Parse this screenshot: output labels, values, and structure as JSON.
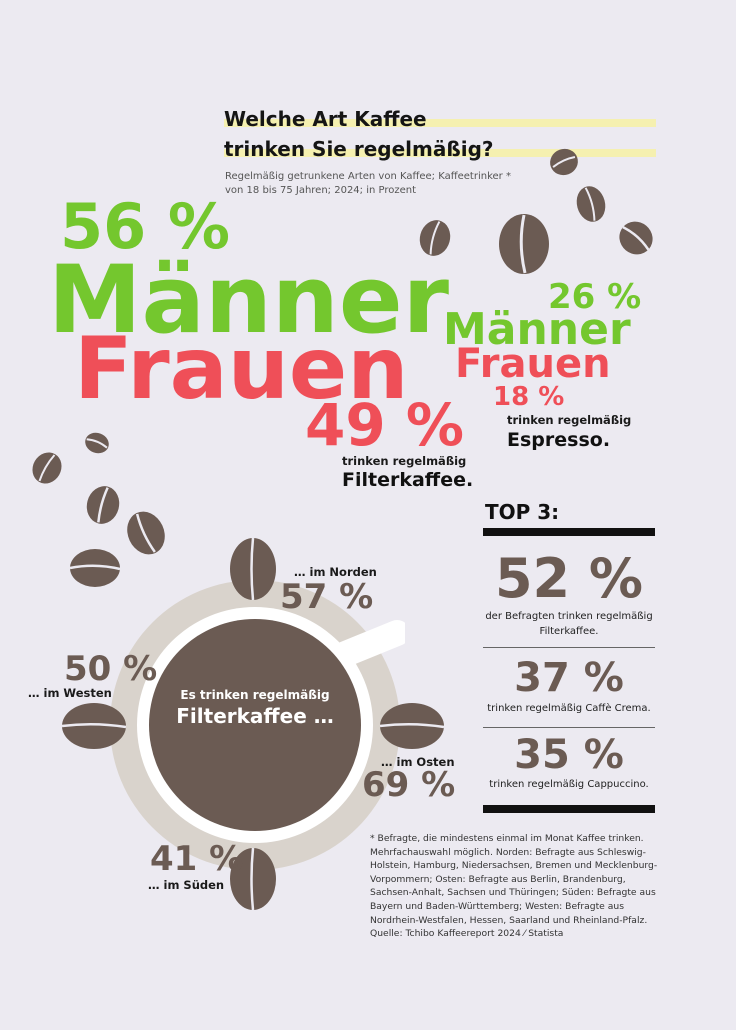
{
  "title_line1": "Welche Art Kaffee",
  "title_line2": "trinken Sie regelmäßig?",
  "subtitle_line1": "Regelmäßig getrunkene Arten von Kaffee; Kaffeetrinker *",
  "subtitle_line2": "von 18 bis 75 Jahren; 2024; in Prozent",
  "colors": {
    "men": "#74c72e",
    "women": "#ef4f58",
    "coffee": "#6b5b53",
    "saucer": "#d9d3cc",
    "background": "#eceaf1"
  },
  "filter": {
    "men_pct": "56 %",
    "men_label": "Männer",
    "women_pct": "49 %",
    "women_label": "Frauen",
    "caption_small": "trinken regelmäßig",
    "caption_big": "Filterkaffee."
  },
  "espresso": {
    "men_pct": "26 %",
    "men_label": "Männer",
    "women_pct": "18 %",
    "women_label": "Frauen",
    "caption_small": "trinken regelmäßig",
    "caption_big": "Espresso."
  },
  "cup": {
    "line1": "Es trinken regelmäßig",
    "line2": "Filterkaffee …"
  },
  "regions": {
    "north": {
      "label": "… im Norden",
      "pct": "57 %"
    },
    "west": {
      "label": "… im Westen",
      "pct": "50 %"
    },
    "east": {
      "label": "… im Osten",
      "pct": "69 %"
    },
    "south": {
      "label": "… im Süden",
      "pct": "41 %"
    }
  },
  "top3": {
    "heading": "TOP 3:",
    "items": [
      {
        "pct": "52 %",
        "caption": "der Befragten trinken regelmäßig Filterkaffee."
      },
      {
        "pct": "37 %",
        "caption": "trinken regelmäßig Caffè Crema."
      },
      {
        "pct": "35 %",
        "caption": "trinken regelmäßig Cappuccino."
      }
    ]
  },
  "footnote": "* Befragte, die mindestens einmal im Monat Kaffee trinken. Mehrfachauswahl möglich. Norden: Befragte aus Schleswig-Holstein, Hamburg, Niedersachsen, Bremen und Mecklenburg-Vorpommern; Osten: Befragte aus Berlin, Brandenburg, Sachsen-Anhalt, Sachsen und Thüringen; Süden: Befragte aus Bayern und Baden-Württemberg; Westen: Befragte aus Nordrhein-Westfalen, Hessen, Saarland und Rheinland-Pfalz. Quelle: Tchibo Kaffeereport 2024 ⁄ Statista",
  "chart_data": [
    {
      "type": "bar",
      "categories": [
        "Filterkaffee",
        "Espresso"
      ],
      "series": [
        {
          "name": "Männer",
          "values": [
            56,
            26
          ]
        },
        {
          "name": "Frauen",
          "values": [
            49,
            18
          ]
        }
      ]
    },
    {
      "type": "bar",
      "categories": [
        "Norden",
        "Westen",
        "Osten",
        "Süden"
      ],
      "values": [
        57,
        50,
        69,
        41
      ]
    },
    {
      "type": "bar",
      "categories": [
        "Filterkaffee",
        "Caffè Crema",
        "Cappuccino"
      ],
      "values": [
        52,
        37,
        35
      ]
    }
  ]
}
